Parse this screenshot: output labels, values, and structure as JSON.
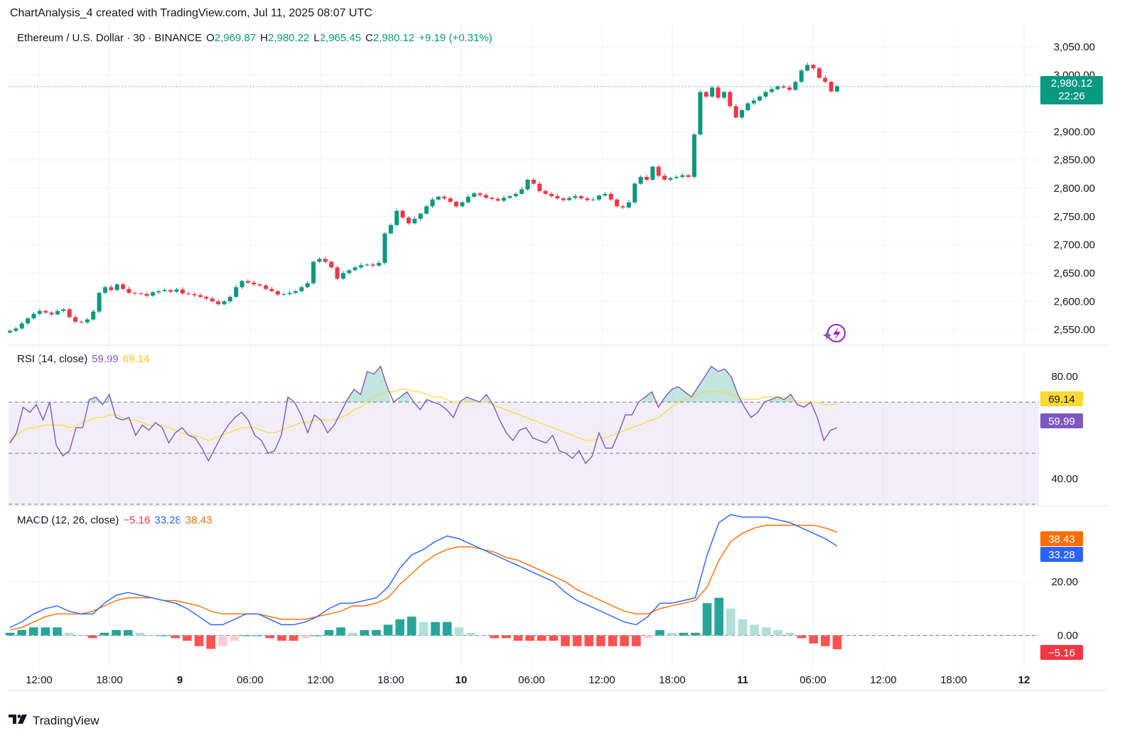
{
  "header": {
    "text": "ChartAnalysis_4 created with TradingView.com, Jul 11, 2025 08:07 UTC"
  },
  "price_legend": {
    "symbol": "Ethereum / U.S. Dollar · 30 · BINANCE",
    "o_label": "O",
    "o": "2,969.87",
    "h_label": "H",
    "h": "2,980.22",
    "l_label": "L",
    "l": "2,965.45",
    "c_label": "C",
    "c": "2,980.12",
    "change": "+9.19 (+0.31%)"
  },
  "rsi_legend": {
    "label": "RSI (14, close)",
    "rsi": "59.99",
    "ma": "69.14"
  },
  "macd_legend": {
    "label": "MACD (12, 26, close)",
    "hist": "−5.16",
    "macd": "33.28",
    "signal": "38.43"
  },
  "price_badge": {
    "price": "2,980.12",
    "countdown": "22:26"
  },
  "rsi_badges": {
    "ma": "69.14",
    "rsi": "59.99"
  },
  "macd_badges": {
    "signal": "38.43",
    "macd": "33.28",
    "hist": "−5.16"
  },
  "brand": {
    "name": "TradingView"
  },
  "colors": {
    "up": "#089981",
    "down": "#f23645",
    "rsi": "#7e57c2",
    "rsi_ma": "#fdd835",
    "macd": "#2962ff",
    "signal": "#ff6d00"
  },
  "chart_data": [
    {
      "type": "candlestick",
      "title": "Ethereum / U.S. Dollar · 30 · BINANCE",
      "ylim": [
        2525,
        3090
      ],
      "yticks": [
        "3,050.00",
        "3,000.00",
        "2,900.00",
        "2,850.00",
        "2,800.00",
        "2,750.00",
        "2,700.00",
        "2,650.00",
        "2,600.00",
        "2,550.00"
      ],
      "ytick_values": [
        3050,
        3000,
        2900,
        2850,
        2800,
        2750,
        2700,
        2650,
        2600,
        2550
      ],
      "x_ticks": [
        "12:00",
        "18:00",
        "9",
        "06:00",
        "12:00",
        "18:00",
        "10",
        "06:00",
        "12:00",
        "18:00",
        "11",
        "06:00",
        "12:00",
        "18:00",
        "12"
      ],
      "close_key": [
        2548,
        2552,
        2561,
        2570,
        2578,
        2583,
        2580,
        2577,
        2583,
        2586,
        2572,
        2564,
        2563,
        2568,
        2582,
        2615,
        2625,
        2620,
        2630,
        2622,
        2615,
        2614,
        2613,
        2610,
        2616,
        2618,
        2620,
        2617,
        2621,
        2614,
        2613,
        2611,
        2608,
        2605,
        2600,
        2595,
        2600,
        2608,
        2625,
        2636,
        2633,
        2630,
        2628,
        2622,
        2618,
        2612,
        2613,
        2615,
        2618,
        2625,
        2632,
        2670,
        2675,
        2670,
        2660,
        2640,
        2650,
        2655,
        2660,
        2664,
        2665,
        2663,
        2668,
        2720,
        2735,
        2760,
        2748,
        2738,
        2746,
        2755,
        2768,
        2780,
        2785,
        2782,
        2776,
        2768,
        2775,
        2785,
        2791,
        2788,
        2783,
        2781,
        2778,
        2783,
        2786,
        2790,
        2798,
        2815,
        2808,
        2795,
        2790,
        2786,
        2782,
        2779,
        2783,
        2786,
        2782,
        2779,
        2780,
        2787,
        2790,
        2780,
        2768,
        2766,
        2775,
        2808,
        2820,
        2815,
        2838,
        2822,
        2815,
        2818,
        2820,
        2823,
        2820,
        2895,
        2970,
        2962,
        2978,
        2960,
        2970,
        2945,
        2925,
        2938,
        2950,
        2955,
        2962,
        2970,
        2975,
        2980,
        2978,
        2974,
        2988,
        3008,
        3018,
        3012,
        2995,
        2988,
        2971,
        2980.12
      ],
      "open": 2969.87,
      "high": 2980.22,
      "low": 2965.45,
      "close": 2980.12,
      "change": "+9.19 (+0.31%)",
      "last_price": 2980.12
    },
    {
      "type": "line",
      "title": "RSI (14, close)",
      "ylim": [
        30,
        92
      ],
      "yticks": [
        "80.00",
        "40.00"
      ],
      "ytick_values": [
        80,
        40
      ],
      "bands": [
        70,
        50,
        30
      ],
      "series": [
        {
          "name": "RSI",
          "values": [
            54,
            58,
            68,
            66,
            69,
            63,
            70,
            53,
            49,
            51,
            60,
            60,
            71,
            72,
            69,
            73,
            64,
            63,
            64,
            57,
            61,
            59,
            62,
            60,
            54,
            58,
            60,
            57,
            56,
            52,
            47,
            52,
            57,
            61,
            64,
            66,
            63,
            57,
            55,
            50,
            51,
            57,
            72,
            70,
            65,
            58,
            65,
            63,
            58,
            61,
            66,
            71,
            75,
            73,
            82,
            81,
            84,
            76,
            70,
            72,
            74,
            70,
            67,
            71,
            70,
            69,
            67,
            64,
            70,
            72,
            71,
            70,
            73,
            69,
            63,
            58,
            55,
            59,
            60,
            56,
            55,
            54,
            57,
            51,
            50,
            48,
            51,
            46,
            49,
            58,
            52,
            52,
            58,
            65,
            65,
            70,
            72,
            74,
            68,
            72,
            75,
            76,
            74,
            72,
            76,
            80,
            84,
            82,
            83,
            80,
            73,
            68,
            64,
            66,
            70,
            71,
            72,
            71,
            73,
            69,
            68,
            70,
            64,
            55,
            59,
            59.99
          ]
        },
        {
          "name": "RSI MA",
          "values": [
            55,
            57,
            59,
            60,
            60,
            61,
            61,
            61,
            61,
            60,
            61,
            62,
            63,
            64,
            64,
            65,
            65,
            64,
            63,
            63,
            62,
            61,
            61,
            61,
            60,
            59,
            58,
            57,
            57,
            56,
            55,
            56,
            57,
            58,
            59,
            60,
            60,
            60,
            59,
            58,
            58,
            59,
            60,
            61,
            62,
            62,
            63,
            63,
            63,
            63,
            64,
            65,
            67,
            68,
            70,
            72,
            73,
            74,
            74,
            75,
            75,
            74,
            74,
            73,
            72,
            72,
            71,
            70,
            70,
            70,
            70,
            70,
            70,
            69,
            68,
            67,
            66,
            65,
            64,
            63,
            62,
            61,
            60,
            59,
            58,
            57,
            56,
            55,
            55,
            56,
            56,
            57,
            58,
            59,
            60,
            61,
            62,
            63,
            64,
            66,
            68,
            70,
            71,
            72,
            73,
            74,
            74,
            74,
            74,
            73,
            72,
            71,
            71,
            71,
            72,
            72,
            72,
            72,
            71,
            70,
            70,
            70,
            70,
            69,
            69,
            69.14
          ]
        }
      ]
    },
    {
      "type": "line+bar",
      "title": "MACD (12, 26, close)",
      "ylim": [
        -12,
        48
      ],
      "yticks": [
        "20.00",
        "0.00"
      ],
      "ytick_values": [
        20,
        0
      ],
      "series": [
        {
          "name": "MACD",
          "values": [
            3,
            5,
            8,
            10,
            11,
            9,
            8,
            8,
            12,
            15,
            16,
            15,
            14,
            13,
            12,
            10,
            7,
            4,
            4,
            6,
            8,
            8,
            6,
            4,
            4,
            5,
            7,
            10,
            12,
            12,
            13,
            14,
            18,
            25,
            30,
            32,
            35,
            37,
            36,
            34,
            32,
            30,
            28,
            26,
            24,
            22,
            20,
            16,
            13,
            11,
            9,
            7,
            5,
            4,
            7,
            12,
            12,
            13,
            14,
            30,
            42,
            45,
            44,
            44,
            44,
            43,
            42,
            40,
            38,
            36,
            33.28
          ]
        },
        {
          "name": "Signal",
          "values": [
            2,
            3,
            5,
            7,
            8,
            8,
            8,
            9,
            11,
            13,
            14,
            14,
            14,
            13,
            13,
            12,
            11,
            9,
            8,
            8,
            8,
            8,
            7,
            6,
            6,
            6,
            7,
            8,
            9,
            11,
            11,
            12,
            14,
            19,
            23,
            27,
            30,
            32,
            33,
            33,
            32,
            31,
            29,
            28,
            26,
            24,
            22,
            20,
            17,
            15,
            13,
            11,
            9,
            8,
            8,
            10,
            11,
            12,
            13,
            18,
            28,
            35,
            38,
            40,
            41,
            41,
            41,
            41,
            41,
            40,
            38.43
          ]
        },
        {
          "name": "Histogram",
          "values": [
            1,
            2,
            3,
            3,
            3,
            1,
            0,
            -1,
            1,
            2,
            2,
            1,
            0,
            0,
            -1,
            -2,
            -4,
            -5,
            -4,
            -2,
            0,
            0,
            -1,
            -2,
            -2,
            -1,
            0,
            2,
            3,
            1,
            2,
            2,
            4,
            6,
            7,
            5,
            5,
            5,
            3,
            1,
            0,
            -1,
            -1,
            -2,
            -2,
            -2,
            -2,
            -4,
            -4,
            -4,
            -4,
            -4,
            -4,
            -4,
            -1,
            2,
            1,
            1,
            1,
            12,
            14,
            10,
            6,
            4,
            3,
            2,
            1,
            -1,
            -3,
            -4,
            -5.16
          ]
        }
      ]
    }
  ]
}
